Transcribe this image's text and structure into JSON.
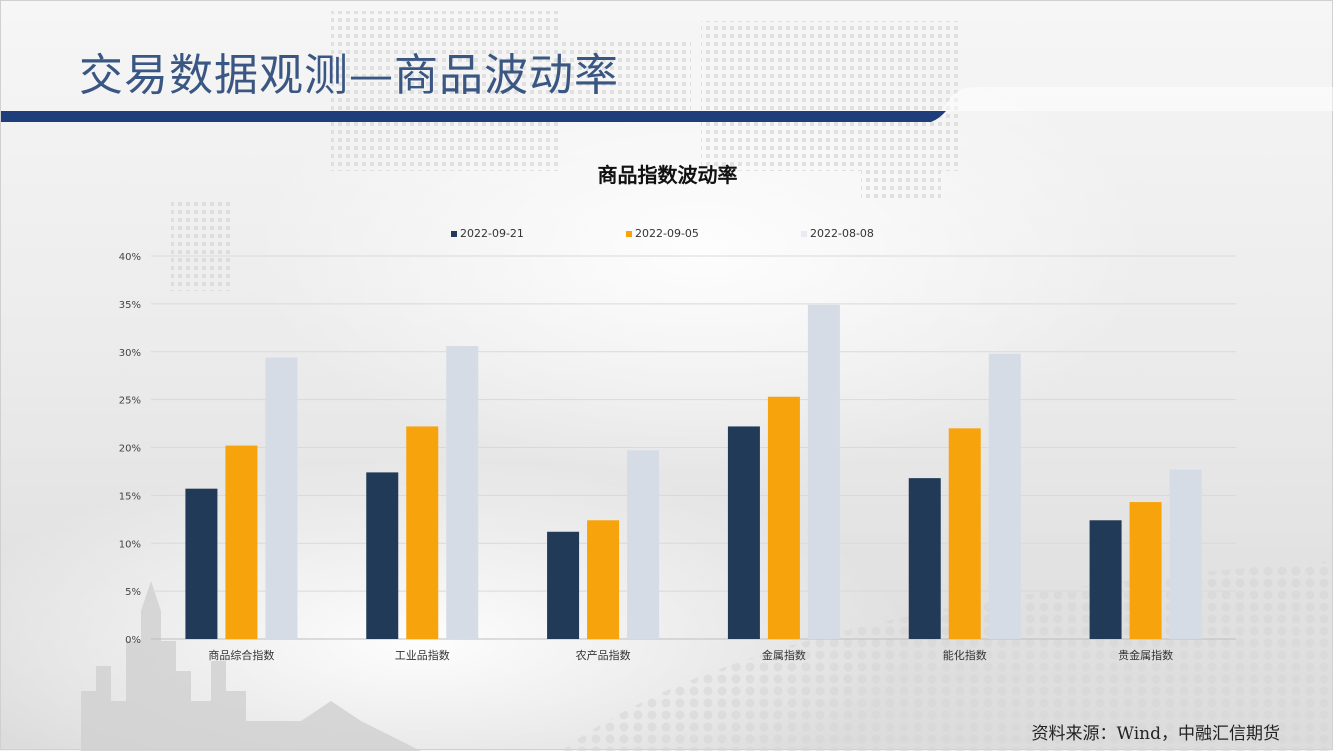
{
  "slide": {
    "title": "交易数据观测—商品波动率",
    "source": "资料来源：Wind，中融汇信期货"
  },
  "colors": {
    "series_1": "#203a57",
    "series_2": "#f7a30c",
    "series_3": "#d5dce6",
    "title_text": "#3a5682",
    "header_bar": "#1f3d7a"
  },
  "chart_data": {
    "type": "bar",
    "title": "商品指数波动率",
    "categories": [
      "商品综合指数",
      "工业品指数",
      "农产品指数",
      "金属指数",
      "能化指数",
      "贵金属指数"
    ],
    "series": [
      {
        "name": "2022-09-21",
        "values": [
          15.7,
          17.4,
          11.2,
          22.2,
          16.8,
          12.4
        ]
      },
      {
        "name": "2022-09-05",
        "values": [
          20.2,
          22.2,
          12.4,
          25.3,
          22.0,
          14.3
        ]
      },
      {
        "name": "2022-08-08",
        "values": [
          29.4,
          30.6,
          19.7,
          34.9,
          29.8,
          17.7
        ]
      }
    ],
    "y_ticks": [
      "0%",
      "5%",
      "10%",
      "15%",
      "20%",
      "25%",
      "30%",
      "35%",
      "40%"
    ],
    "ylim": [
      0,
      40
    ],
    "grid": true,
    "legend_position": "top"
  }
}
